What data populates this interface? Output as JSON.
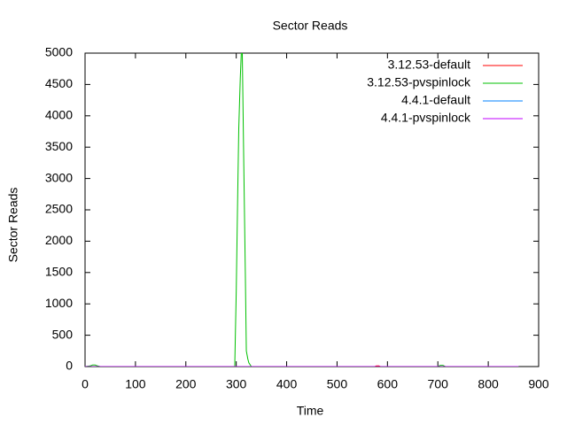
{
  "chart_data": {
    "type": "line",
    "title": "Sector Reads",
    "xlabel": "Time",
    "ylabel": "Sector Reads",
    "xlim": [
      0,
      900
    ],
    "xticks": [
      0,
      100,
      200,
      300,
      400,
      500,
      600,
      700,
      800,
      900
    ],
    "ylim": [
      0,
      5000
    ],
    "yticks": [
      0,
      500,
      1000,
      1500,
      2000,
      2500,
      3000,
      3500,
      4000,
      4500,
      5000
    ],
    "legend": "top-right",
    "grid": false,
    "series": [
      {
        "name": "3.12.53-default",
        "color": "#ff0000",
        "x": [
          0,
          575,
          578,
          583,
          586,
          860
        ],
        "values": [
          0,
          0,
          10,
          10,
          0,
          0
        ]
      },
      {
        "name": "3.12.53-pvspinlock",
        "color": "#00c000",
        "x": [
          0,
          10,
          15,
          20,
          25,
          30,
          297,
          300,
          303,
          305,
          308,
          310,
          312,
          315,
          318,
          320,
          323,
          325,
          330,
          700,
          705,
          710,
          715,
          860
        ],
        "values": [
          0,
          10,
          25,
          25,
          10,
          0,
          0,
          1200,
          2800,
          3800,
          4600,
          5000,
          5000,
          3200,
          1500,
          250,
          120,
          60,
          0,
          0,
          20,
          20,
          0,
          0
        ]
      },
      {
        "name": "4.4.1-default",
        "color": "#0080ff",
        "x": [
          0,
          860
        ],
        "values": [
          0,
          0
        ]
      },
      {
        "name": "4.4.1-pvspinlock",
        "color": "#c000ff",
        "x": [
          0,
          860
        ],
        "values": [
          0,
          0
        ]
      }
    ]
  }
}
